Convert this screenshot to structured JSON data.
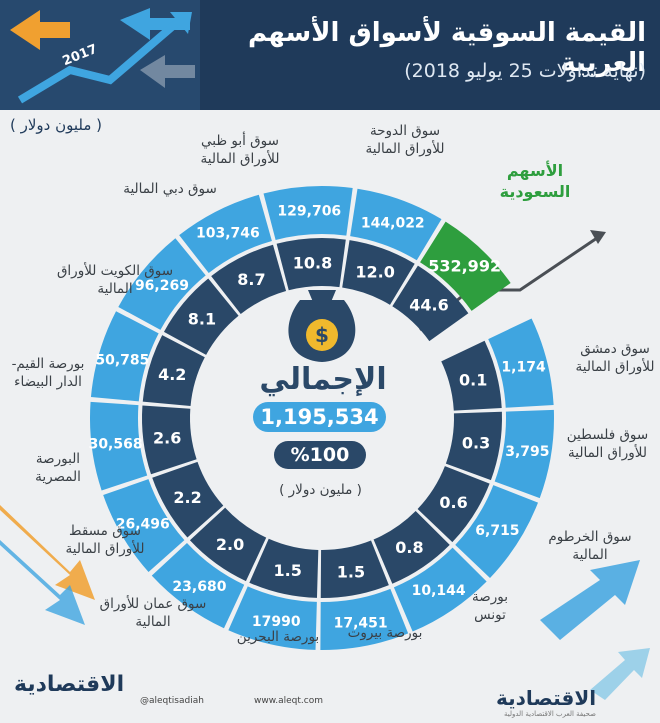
{
  "header": {
    "title": "القيمة السوقية لأسواق الأسهم العربية",
    "subtitle": "(نهاية تداولات 25 يوليو 2018)",
    "year": "2017"
  },
  "unit_top": "( مليون دولار )",
  "center": {
    "title": "الإجمالي",
    "total": "1,195,534",
    "percent": "%100",
    "unit": "( مليون دولار )"
  },
  "colors": {
    "outer_ring": "#3fa5e0",
    "inner_ring": "#2a4868",
    "highlight": "#2e9e3e",
    "header_bg": "#1f3a5a"
  },
  "chart_data": {
    "type": "radial-bar",
    "unit": "مليون دولار",
    "markets": [
      {
        "name": "الأسهم السعودية",
        "market_cap": "532,992",
        "share_pct": "44.6",
        "highlight": true
      },
      {
        "name": "سوق الدوحة للأوراق المالية",
        "market_cap": "144,022",
        "share_pct": "12.0"
      },
      {
        "name": "سوق أبو ظبي للأوراق المالية",
        "market_cap": "129,706",
        "share_pct": "10.8"
      },
      {
        "name": "سوق دبي المالية",
        "market_cap": "103,746",
        "share_pct": "8.7"
      },
      {
        "name": "سوق الكويت للأوراق المالية",
        "market_cap": "96,269",
        "share_pct": "8.1"
      },
      {
        "name": "بورصة القيم- الدار البيضاء",
        "market_cap": "50,785",
        "share_pct": "4.2"
      },
      {
        "name": "البورصة المصرية",
        "market_cap": "30,568",
        "share_pct": "2.6"
      },
      {
        "name": "سوق مسقط للأوراق المالية",
        "market_cap": "26,496",
        "share_pct": "2.2"
      },
      {
        "name": "سوق عمان للأوراق المالية",
        "market_cap": "23,680",
        "share_pct": "2.0"
      },
      {
        "name": "بورصة البحرين",
        "market_cap": "17990",
        "share_pct": "1.5"
      },
      {
        "name": "بورصة بيروت",
        "market_cap": "17,451",
        "share_pct": "1.5"
      },
      {
        "name": "بورصة تونس",
        "market_cap": "10,144",
        "share_pct": "0.8"
      },
      {
        "name": "سوق الخرطوم المالية",
        "market_cap": "6,715",
        "share_pct": "0.6"
      },
      {
        "name": "سوق فلسطين للأوراق المالية",
        "market_cap": "3,795",
        "share_pct": "0.3"
      },
      {
        "name": "سوق دمشق للأوراق المالية",
        "market_cap": "1,174",
        "share_pct": "0.1"
      }
    ],
    "total": "1,195,534",
    "total_pct": "%100"
  },
  "footer": {
    "handle": "@aleqtisadiah",
    "site": "www.aleqt.com",
    "logo": "الاقتصادية",
    "logo_sub": "صحيفة العرب الاقتصادية الدولية"
  }
}
